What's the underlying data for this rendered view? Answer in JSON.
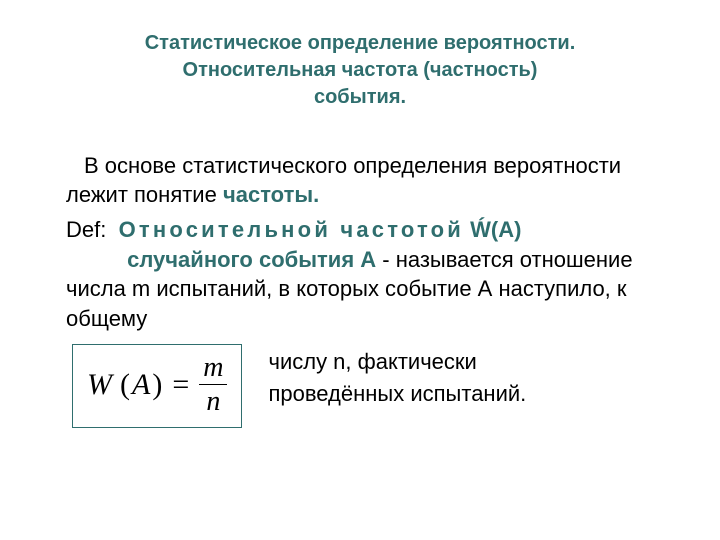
{
  "title": {
    "line1": "Статистическое определение вероятности.",
    "line2": "Относительная частота (частность)",
    "line3": "события.",
    "color": "#2f6e6e",
    "fontsize": 20
  },
  "para1": {
    "lead": "В основе статистического определения вероятности лежит понятие ",
    "highlight": "частоты."
  },
  "def": {
    "label": "Def:",
    "term_spaced": "Относительной  частотой",
    "term_tail": " Ẃ(А)",
    "gap": "          ",
    "subj": "случайного события А",
    "cont1": " - называется отношение    числа m испытаний, в которых событие А наступило, к общему"
  },
  "formula": {
    "left": "W",
    "arg_open": "(",
    "arg": "A",
    "arg_close": ")",
    "eq": "=",
    "num": "m",
    "den": "n",
    "border_color": "#2f6e6e"
  },
  "right": {
    "line1": "числу n, фактически",
    "line2": "проведённых испытаний."
  },
  "colors": {
    "text": "#000000",
    "accent": "#2f6e6e",
    "background": "#ffffff"
  },
  "body_fontsize": 22
}
